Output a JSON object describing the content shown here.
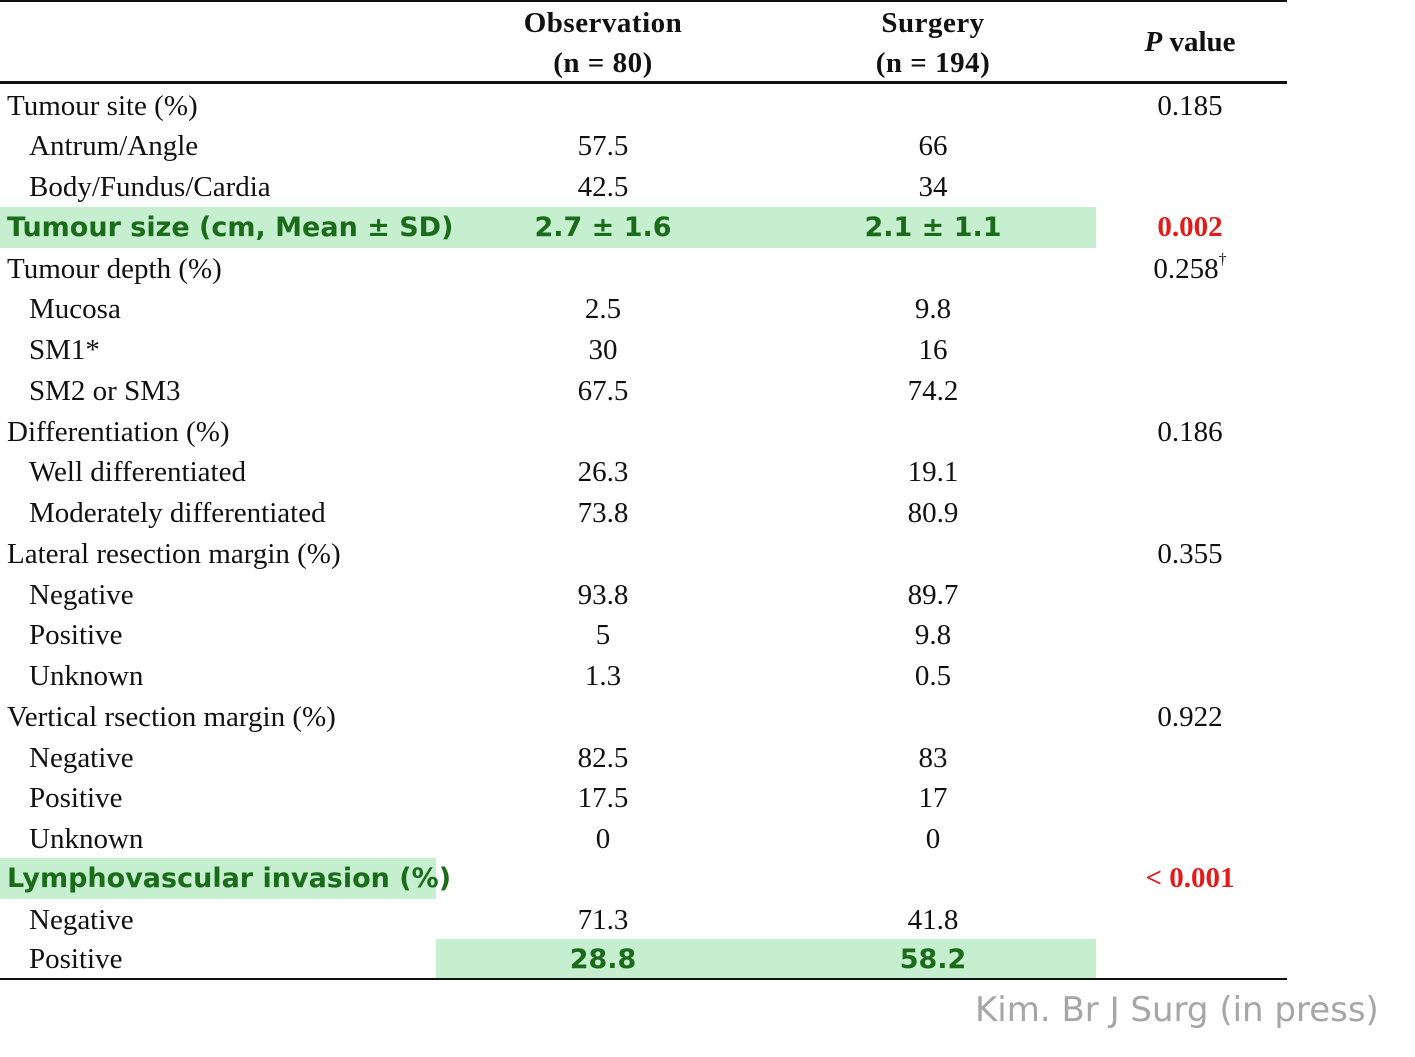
{
  "header": {
    "observation_title": "Observation",
    "observation_n": "(n = 80)",
    "surgery_title": "Surgery",
    "surgery_n": "(n = 194)",
    "p_symbol": "P",
    "p_word": "value"
  },
  "rows": [
    {
      "label": "Tumour site (%)",
      "obs": "",
      "sur": "",
      "p": "0.185"
    },
    {
      "label": "Antrum/Angle",
      "obs": "57.5",
      "sur": "66",
      "p": ""
    },
    {
      "label": "Body/Fundus/Cardia",
      "obs": "42.5",
      "sur": "34",
      "p": ""
    },
    {
      "label": "Tumour size (cm, Mean ± SD)",
      "obs": "2.7 ± 1.6",
      "sur": "2.1 ± 1.1",
      "p": "0.002"
    },
    {
      "label": "Tumour depth (%)",
      "obs": "",
      "sur": "",
      "p": "0.258",
      "p_mark": "†"
    },
    {
      "label": "Mucosa",
      "obs": "2.5",
      "sur": "9.8",
      "p": ""
    },
    {
      "label": "SM1*",
      "obs": "30",
      "sur": "16",
      "p": ""
    },
    {
      "label": "SM2 or SM3",
      "obs": "67.5",
      "sur": "74.2",
      "p": ""
    },
    {
      "label": "Differentiation (%)",
      "obs": "",
      "sur": "",
      "p": "0.186"
    },
    {
      "label": "Well differentiated",
      "obs": "26.3",
      "sur": "19.1",
      "p": ""
    },
    {
      "label": "Moderately differentiated",
      "obs": "73.8",
      "sur": "80.9",
      "p": ""
    },
    {
      "label": "Lateral resection margin (%)",
      "obs": "",
      "sur": "",
      "p": "0.355"
    },
    {
      "label": "Negative",
      "obs": "93.8",
      "sur": "89.7",
      "p": ""
    },
    {
      "label": "Positive",
      "obs": "5",
      "sur": "9.8",
      "p": ""
    },
    {
      "label": "Unknown",
      "obs": "1.3",
      "sur": "0.5",
      "p": ""
    },
    {
      "label": "Vertical rsection margin (%)",
      "obs": "",
      "sur": "",
      "p": "0.922"
    },
    {
      "label": "Negative",
      "obs": "82.5",
      "sur": "83",
      "p": ""
    },
    {
      "label": "Positive",
      "obs": "17.5",
      "sur": "17",
      "p": ""
    },
    {
      "label": "Unknown",
      "obs": "0",
      "sur": "0",
      "p": ""
    },
    {
      "label": "Lymphovascular invasion (%)",
      "obs": "",
      "sur": "",
      "p": "< 0.001"
    },
    {
      "label": "Negative",
      "obs": "71.3",
      "sur": "41.8",
      "p": ""
    },
    {
      "label": "Positive",
      "obs": "28.8",
      "sur": "58.2",
      "p": ""
    }
  ],
  "colors": {
    "highlight_background": "#c6efcf",
    "highlight_text": "#1a6b1a",
    "significant_p": "#e31b1b",
    "credit_text": "#a6a6a6"
  },
  "credit": "Kim. Br J Surg (in press)"
}
